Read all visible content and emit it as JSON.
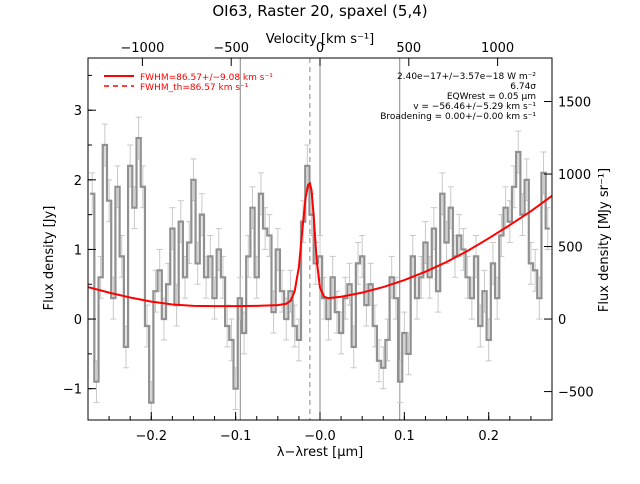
{
  "chart_data": {
    "type": "line",
    "title": "OI63, Raster 20, spaxel (5,4)",
    "xlabel_bottom": "λ−λrest [μm]",
    "xlabel_top": "Velocity [km s⁻¹]",
    "ylabel_left": "Flux density [Jy]",
    "ylabel_right": "Flux density [MJy sr⁻¹]",
    "xlim": [
      -0.275,
      0.275
    ],
    "ylim": [
      -1.45,
      3.75
    ],
    "x_ticks": [
      -0.2,
      -0.1,
      0.0,
      0.1,
      0.2
    ],
    "x_tick_labels": [
      "−0.2",
      "−0.1",
      "−0.0",
      "0.1",
      "0.2"
    ],
    "y_ticks": [
      -1,
      0,
      1,
      2,
      3
    ],
    "y_tick_labels": [
      "−1",
      "0",
      "1",
      "2",
      "3"
    ],
    "top_ticks": [
      -1000,
      -500,
      0,
      500,
      1000
    ],
    "top_tick_labels": [
      "−1000",
      "−500",
      "0",
      "500",
      "1000"
    ],
    "velocity_per_micron": 4750,
    "right_ticks": [
      -500,
      0,
      500,
      1000,
      1500
    ],
    "right_tick_labels": [
      "−500",
      "0",
      "500",
      "1000",
      "1500"
    ],
    "right_scale_per_jy": 480,
    "vertical_lines": [
      -0.0945,
      0.0,
      0.0945
    ],
    "reference_line": -0.012,
    "legend": [
      {
        "label": "FWHM=86.57+/−9.08 km s⁻¹",
        "style": "solid",
        "color": "#ff0000"
      },
      {
        "label": "FWHM_th=86.57 km s⁻¹",
        "style": "dashed",
        "color": "#ff0000"
      }
    ],
    "annotations": [
      "2.40e−17+/−3.57e−18 W m⁻²",
      "6.74σ",
      "EQWrest = 0.05 μm",
      "v = −56.46+/−5.29 km s⁻¹",
      "Broadening = 0.00+/−0.00 km s⁻¹"
    ],
    "series": [
      {
        "style": "step",
        "color": "#909090",
        "error": 0.3,
        "x": [
          -0.27,
          -0.265,
          -0.26,
          -0.255,
          -0.25,
          -0.245,
          -0.24,
          -0.235,
          -0.23,
          -0.225,
          -0.22,
          -0.215,
          -0.21,
          -0.205,
          -0.2,
          -0.195,
          -0.19,
          -0.185,
          -0.18,
          -0.175,
          -0.17,
          -0.165,
          -0.16,
          -0.155,
          -0.15,
          -0.145,
          -0.14,
          -0.135,
          -0.13,
          -0.125,
          -0.12,
          -0.115,
          -0.11,
          -0.105,
          -0.1,
          -0.095,
          -0.09,
          -0.085,
          -0.08,
          -0.075,
          -0.07,
          -0.065,
          -0.06,
          -0.055,
          -0.05,
          -0.045,
          -0.04,
          -0.035,
          -0.03,
          -0.025,
          -0.02,
          -0.015,
          -0.01,
          -0.005,
          0.0,
          0.005,
          0.01,
          0.015,
          0.02,
          0.025,
          0.03,
          0.035,
          0.04,
          0.045,
          0.05,
          0.055,
          0.06,
          0.065,
          0.07,
          0.075,
          0.08,
          0.085,
          0.09,
          0.095,
          0.1,
          0.105,
          0.11,
          0.115,
          0.12,
          0.125,
          0.13,
          0.135,
          0.14,
          0.145,
          0.15,
          0.155,
          0.16,
          0.165,
          0.17,
          0.175,
          0.18,
          0.185,
          0.19,
          0.195,
          0.2,
          0.205,
          0.21,
          0.215,
          0.22,
          0.225,
          0.23,
          0.235,
          0.24,
          0.245,
          0.25,
          0.255,
          0.26,
          0.265,
          0.27
        ],
        "y": [
          1.8,
          -0.9,
          0.6,
          2.5,
          1.7,
          0.3,
          1.9,
          0.9,
          -0.4,
          2.2,
          1.6,
          2.6,
          1.9,
          -0.1,
          -1.2,
          0.4,
          0.7,
          0.0,
          0.5,
          1.3,
          0.2,
          1.4,
          0.6,
          1.1,
          2.0,
          0.8,
          1.5,
          0.6,
          0.9,
          0.3,
          1.0,
          0.6,
          -0.1,
          -0.3,
          -1.0,
          0.3,
          -0.2,
          0.9,
          1.6,
          0.6,
          1.8,
          1.3,
          1.2,
          0.1,
          1.0,
          0.4,
          0.0,
          0.4,
          -0.1,
          -0.3,
          1.4,
          2.2,
          1.5,
          0.8,
          0.9,
          0.3,
          0.0,
          0.6,
          0.1,
          -0.2,
          0.3,
          0.5,
          -0.4,
          0.8,
          0.9,
          0.2,
          0.5,
          -0.1,
          -0.6,
          -0.7,
          -0.3,
          0.6,
          0.3,
          -0.9,
          -0.2,
          -0.5,
          0.9,
          0.3,
          0.6,
          1.1,
          0.6,
          1.3,
          0.4,
          1.8,
          1.1,
          1.6,
          0.9,
          1.2,
          1.0,
          0.6,
          0.3,
          0.9,
          -0.1,
          0.4,
          -0.3,
          0.8,
          0.3,
          1.2,
          1.6,
          1.4,
          1.9,
          2.4,
          1.5,
          2.0,
          0.8,
          0.7,
          0.3,
          2.1,
          1.3
        ]
      },
      {
        "style": "solid",
        "color": "#ff0000",
        "x": [
          -0.275,
          -0.25,
          -0.225,
          -0.2,
          -0.175,
          -0.15,
          -0.125,
          -0.1,
          -0.075,
          -0.05,
          -0.04,
          -0.035,
          -0.03,
          -0.025,
          -0.02,
          -0.017,
          -0.014,
          -0.012,
          -0.01,
          -0.007,
          -0.004,
          0.0,
          0.005,
          0.01,
          0.025,
          0.05,
          0.075,
          0.1,
          0.125,
          0.15,
          0.175,
          0.2,
          0.225,
          0.25,
          0.275
        ],
        "y": [
          0.46,
          0.38,
          0.31,
          0.25,
          0.21,
          0.19,
          0.185,
          0.185,
          0.19,
          0.2,
          0.22,
          0.26,
          0.4,
          0.75,
          1.4,
          1.75,
          1.93,
          1.95,
          1.85,
          1.4,
          0.85,
          0.45,
          0.32,
          0.3,
          0.32,
          0.38,
          0.46,
          0.56,
          0.68,
          0.82,
          0.98,
          1.16,
          1.35,
          1.55,
          1.77
        ]
      },
      {
        "style": "dashed",
        "color": "#ff0000",
        "x": [
          -0.04,
          -0.035,
          -0.03,
          -0.025,
          -0.02,
          -0.017,
          -0.014,
          -0.012,
          -0.01,
          -0.007,
          -0.004,
          0.0,
          0.005
        ],
        "y": [
          0.22,
          0.26,
          0.4,
          0.75,
          1.4,
          1.75,
          1.93,
          1.95,
          1.85,
          1.4,
          0.85,
          0.45,
          0.32
        ]
      }
    ]
  }
}
